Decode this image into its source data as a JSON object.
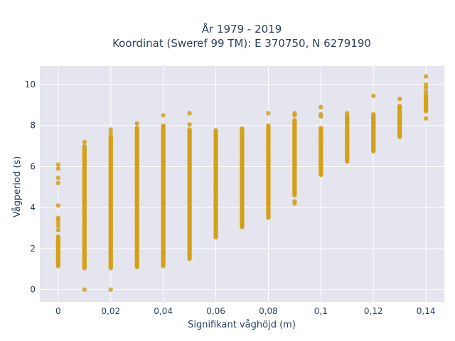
{
  "chart_data": {
    "type": "scatter",
    "title_line1": "År 1979 - 2019",
    "title_line2": "Koordinat (Sweref 99 TM): E 370750, N 6279190",
    "xlabel": "Signifikant våghöjd (m)",
    "ylabel": "Vågperiod (s)",
    "xlim": [
      -0.007,
      0.147
    ],
    "ylim": [
      -0.6,
      10.9
    ],
    "x_ticks": [
      0,
      0.02,
      0.04,
      0.06,
      0.08,
      0.1,
      0.12,
      0.14
    ],
    "x_tick_labels": [
      "0",
      "0,02",
      "0,04",
      "0,06",
      "0,08",
      "0,1",
      "0,12",
      "0,14"
    ],
    "y_ticks": [
      0,
      2,
      4,
      6,
      8,
      10
    ],
    "y_tick_labels": [
      "0",
      "2",
      "4",
      "6",
      "8",
      "10"
    ],
    "grid": true,
    "marker_color": "#d4a017",
    "plot_bg": "#e5e5ef",
    "columns": [
      {
        "x": 0,
        "min": 1.15,
        "max": 2.6,
        "extra": [
          2.9,
          3.1,
          3.25,
          3.4,
          3.5,
          4.1,
          5.2,
          5.45,
          5.9,
          6.1
        ]
      },
      {
        "x": 0.01,
        "min": 1.05,
        "max": 7.0,
        "extra": [
          0.0,
          7.2
        ]
      },
      {
        "x": 0.02,
        "min": 1.05,
        "max": 7.5,
        "extra": [
          0.0,
          7.65,
          7.8
        ]
      },
      {
        "x": 0.03,
        "min": 1.1,
        "max": 7.9,
        "extra": [
          8.1
        ]
      },
      {
        "x": 0.04,
        "min": 1.15,
        "max": 8.0,
        "extra": [
          8.5
        ]
      },
      {
        "x": 0.05,
        "min": 1.5,
        "max": 7.8,
        "extra": [
          8.05,
          8.6
        ]
      },
      {
        "x": 0.06,
        "min": 2.55,
        "max": 7.8,
        "extra": []
      },
      {
        "x": 0.07,
        "min": 3.05,
        "max": 7.9,
        "extra": []
      },
      {
        "x": 0.08,
        "min": 3.5,
        "max": 8.0,
        "extra": [
          8.6
        ]
      },
      {
        "x": 0.09,
        "min": 4.6,
        "max": 8.3,
        "extra": [
          4.2,
          4.3,
          8.5,
          8.6
        ]
      },
      {
        "x": 0.1,
        "min": 5.6,
        "max": 7.9,
        "extra": [
          8.45,
          8.55,
          8.9
        ]
      },
      {
        "x": 0.11,
        "min": 6.25,
        "max": 8.5,
        "extra": [
          8.6
        ]
      },
      {
        "x": 0.12,
        "min": 6.75,
        "max": 8.6,
        "extra": [
          9.45
        ]
      },
      {
        "x": 0.13,
        "min": 7.45,
        "max": 8.95,
        "extra": [
          9.3
        ]
      },
      {
        "x": 0.14,
        "min": 8.7,
        "max": 9.5,
        "extra": [
          8.35,
          9.65,
          9.85,
          10.0,
          10.4
        ]
      }
    ]
  }
}
